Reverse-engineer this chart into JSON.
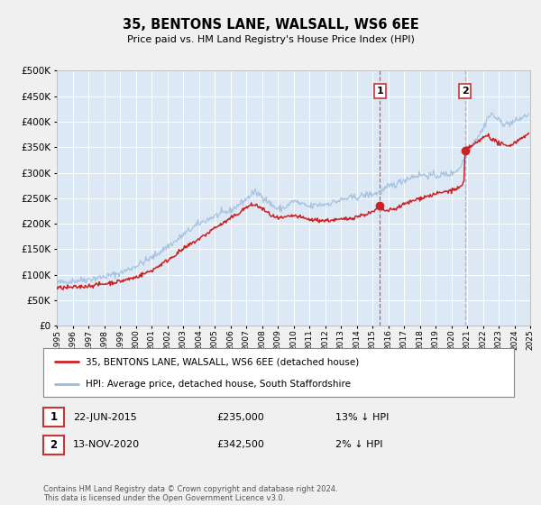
{
  "title": "35, BENTONS LANE, WALSALL, WS6 6EE",
  "subtitle": "Price paid vs. HM Land Registry's House Price Index (HPI)",
  "legend_label_red": "35, BENTONS LANE, WALSALL, WS6 6EE (detached house)",
  "legend_label_blue": "HPI: Average price, detached house, South Staffordshire",
  "annotation1_date": "22-JUN-2015",
  "annotation1_price": "£235,000",
  "annotation1_pct": "13% ↓ HPI",
  "annotation1_year": 2015.47,
  "annotation1_value": 235000,
  "annotation2_date": "13-NOV-2020",
  "annotation2_price": "£342,500",
  "annotation2_pct": "2% ↓ HPI",
  "annotation2_year": 2020.87,
  "annotation2_value": 342500,
  "vline1_color": "#dd4444",
  "vline2_color": "#9999bb",
  "red_color": "#cc2222",
  "blue_color": "#99bbdd",
  "plot_bg": "#dde8f5",
  "fig_bg": "#f0f0f0",
  "grid_color": "#ffffff",
  "ylim": [
    0,
    500000
  ],
  "xlim_start": 1995,
  "xlim_end": 2025,
  "footer_text": "Contains HM Land Registry data © Crown copyright and database right 2024.\nThis data is licensed under the Open Government Licence v3.0.",
  "yticks": [
    0,
    50000,
    100000,
    150000,
    200000,
    250000,
    300000,
    350000,
    400000,
    450000,
    500000
  ],
  "box_edge_color": "#cc3333",
  "legend_border_color": "#888888"
}
